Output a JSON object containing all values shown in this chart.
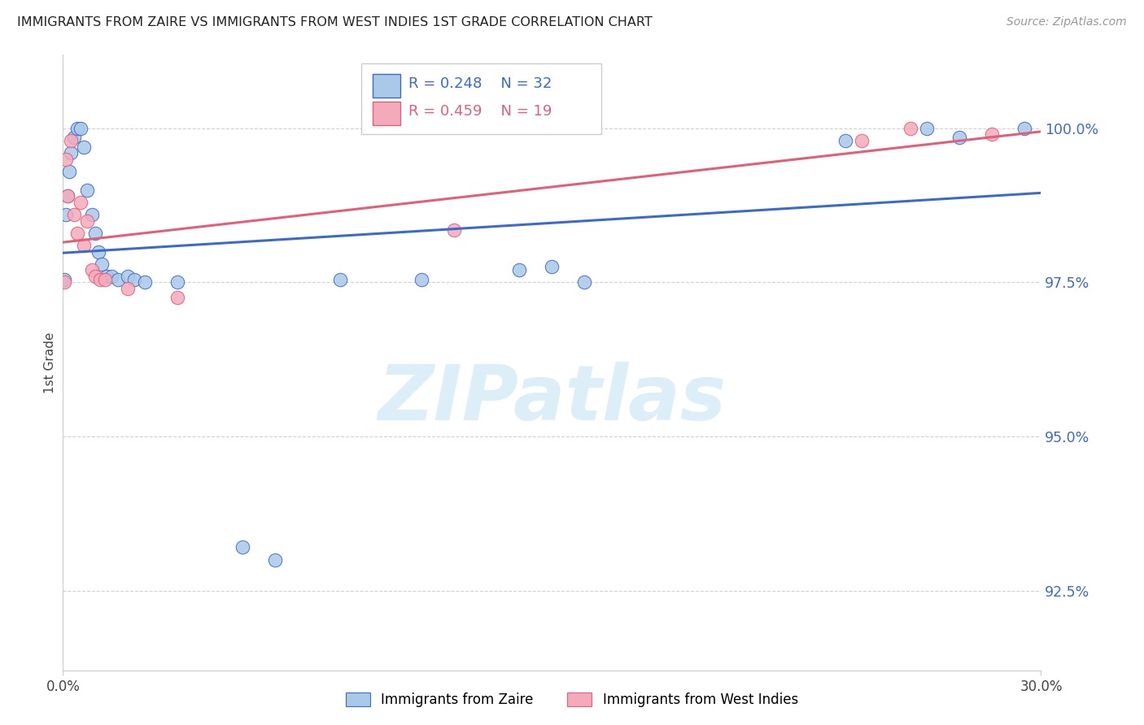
{
  "title": "IMMIGRANTS FROM ZAIRE VS IMMIGRANTS FROM WEST INDIES 1ST GRADE CORRELATION CHART",
  "source": "Source: ZipAtlas.com",
  "ylabel": "1st Grade",
  "yticks": [
    92.5,
    95.0,
    97.5,
    100.0
  ],
  "ytick_labels": [
    "92.5%",
    "95.0%",
    "97.5%",
    "100.0%"
  ],
  "xtick_labels": [
    "0.0%",
    "30.0%"
  ],
  "xlim": [
    0.0,
    30.0
  ],
  "ylim": [
    91.2,
    101.2
  ],
  "legend_zaire": "Immigrants from Zaire",
  "legend_westindies": "Immigrants from West Indies",
  "R_zaire": 0.248,
  "N_zaire": 32,
  "R_westindies": 0.459,
  "N_westindies": 19,
  "color_zaire": "#aac8e8",
  "color_westindies": "#f4aabb",
  "line_color_zaire": "#3a6bcc",
  "line_color_westindies": "#e0607a",
  "axis_tick_color": "#3a6bcc",
  "title_color": "#222222",
  "source_color": "#999999",
  "grid_color": "#cccccc",
  "background_color": "#ffffff",
  "watermark_text": "ZIPatlas",
  "watermark_color": "#dceef8",
  "zaire_x": [
    0.05,
    0.1,
    0.15,
    0.2,
    0.25,
    0.35,
    0.45,
    0.55,
    0.65,
    0.75,
    0.9,
    1.0,
    1.1,
    1.2,
    1.35,
    1.5,
    1.7,
    2.0,
    2.2,
    2.5,
    3.5,
    5.5,
    6.5,
    8.5,
    11.0,
    14.0,
    15.0,
    16.0,
    24.0,
    26.5,
    27.5,
    29.5
  ],
  "zaire_y": [
    97.55,
    98.6,
    98.9,
    99.3,
    99.6,
    99.85,
    100.0,
    100.0,
    99.7,
    99.0,
    98.6,
    98.3,
    98.0,
    97.8,
    97.6,
    97.6,
    97.55,
    97.6,
    97.55,
    97.5,
    97.5,
    93.2,
    93.0,
    97.55,
    97.55,
    97.7,
    97.75,
    97.5,
    99.8,
    100.0,
    99.85,
    100.0
  ],
  "wi_x": [
    0.05,
    0.1,
    0.15,
    0.25,
    0.35,
    0.45,
    0.55,
    0.65,
    0.75,
    0.9,
    1.0,
    1.15,
    1.3,
    2.0,
    3.5,
    12.0,
    24.5,
    26.0,
    28.5
  ],
  "wi_y": [
    97.5,
    99.5,
    98.9,
    99.8,
    98.6,
    98.3,
    98.8,
    98.1,
    98.5,
    97.7,
    97.6,
    97.55,
    97.55,
    97.4,
    97.25,
    98.35,
    99.8,
    100.0,
    99.9
  ]
}
